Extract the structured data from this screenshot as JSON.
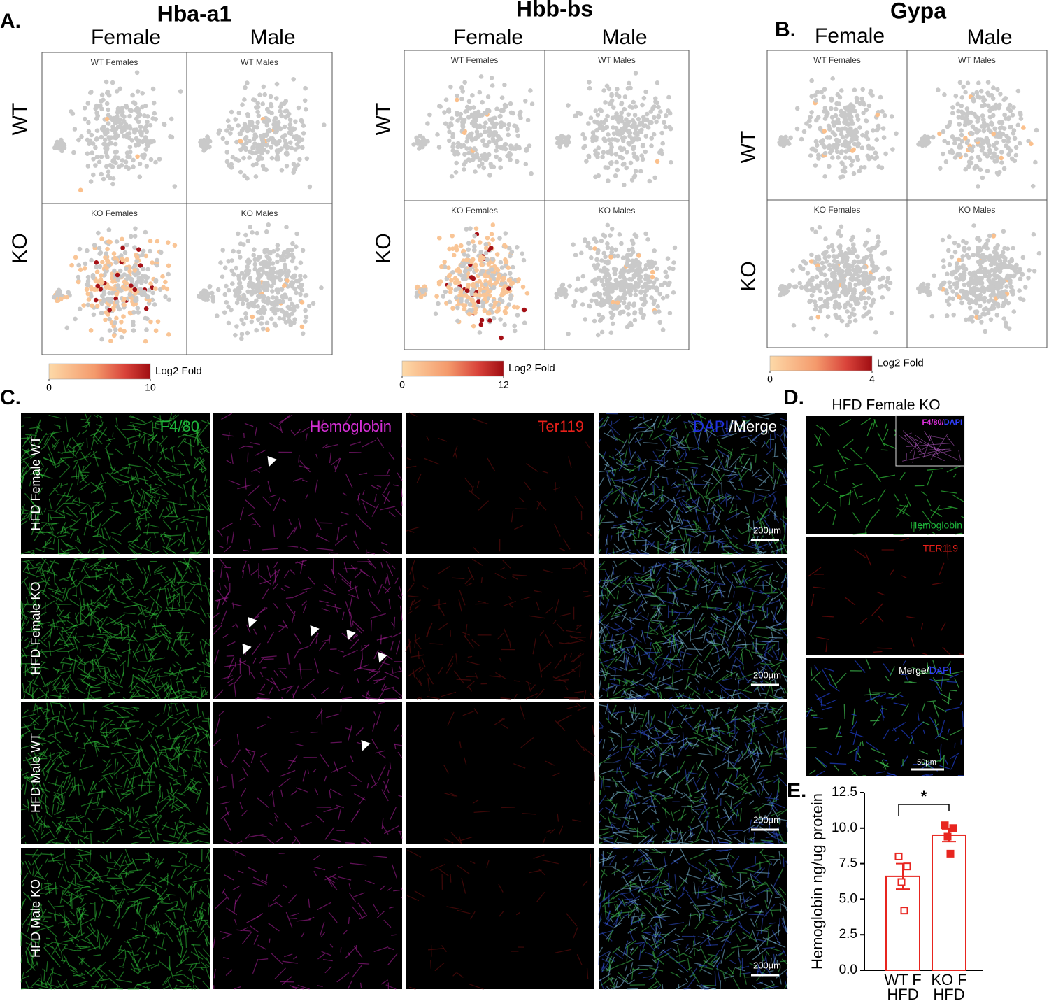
{
  "panel_a": {
    "label": "A.",
    "genes": [
      {
        "title": "Hba-a1",
        "columns": [
          "Female",
          "Male"
        ],
        "rows": [
          "WT",
          "KO"
        ],
        "plots": [
          "WT Females",
          "WT Males",
          "KO Females",
          "KO Males"
        ],
        "colorbar": {
          "label": "Log2 Fold",
          "lim": [
            0,
            10
          ],
          "ticks": [
            0,
            10
          ]
        }
      },
      {
        "title": "Hbb-bs",
        "columns": [
          "Female",
          "Male"
        ],
        "rows": [
          "WT",
          "KO"
        ],
        "plots": [
          "WT Females",
          "WT Males",
          "KO Females",
          "KO Males"
        ],
        "colorbar": {
          "label": "Log2 Fold",
          "lim": [
            0,
            12
          ],
          "ticks": [
            0,
            12
          ]
        }
      }
    ]
  },
  "panel_b": {
    "label": "B.",
    "gene": {
      "title": "Gypa",
      "columns": [
        "Female",
        "Male"
      ],
      "rows": [
        "WT",
        "KO"
      ],
      "plots": [
        "WT Females",
        "WT Males",
        "KO Females",
        "KO Males"
      ],
      "colorbar": {
        "label": "Log2 Fold",
        "lim": [
          0,
          4
        ],
        "ticks": [
          0,
          4
        ]
      }
    }
  },
  "panel_c": {
    "label": "C.",
    "channels": [
      "F4/80",
      "Hemoglobin",
      "Ter119"
    ],
    "merge": [
      "DAPI",
      "/Merge"
    ],
    "rows": [
      "HFD Female WT",
      "HFD Female KO",
      "HFD Male WT",
      "HFD Male KO"
    ],
    "scale_bar": "200µm"
  },
  "panel_d": {
    "label": "D.",
    "title": "HFD Female KO",
    "inset": [
      "F4/80",
      "/",
      "DAPI"
    ],
    "channels": [
      "Hemoglobin",
      "TER119"
    ],
    "merge": [
      "Merge/",
      "DAPI"
    ],
    "scale_bar": "50µm"
  },
  "chart_data": {
    "type": "bar",
    "panel_label": "E.",
    "y_label": "Hemoglobin ng/ug protein",
    "categories": [
      "WT F\nHFD",
      "KO F\nHFD"
    ],
    "values": [
      6.6,
      9.5
    ],
    "errors": [
      0.9,
      0.45
    ],
    "points": [
      [
        8.0,
        7.3,
        6.2,
        4.2
      ],
      [
        10.2,
        10.0,
        9.4,
        8.2
      ]
    ],
    "color": "#e8251f",
    "ylim": [
      0,
      12.5
    ],
    "yticks": [
      {
        "value": 0,
        "label": "0.0"
      },
      2.5,
      {
        "value": 5,
        "label": "5.0"
      },
      7.5,
      {
        "value": 10,
        "label": "10.0"
      },
      12.5
    ],
    "annotation": "*"
  }
}
